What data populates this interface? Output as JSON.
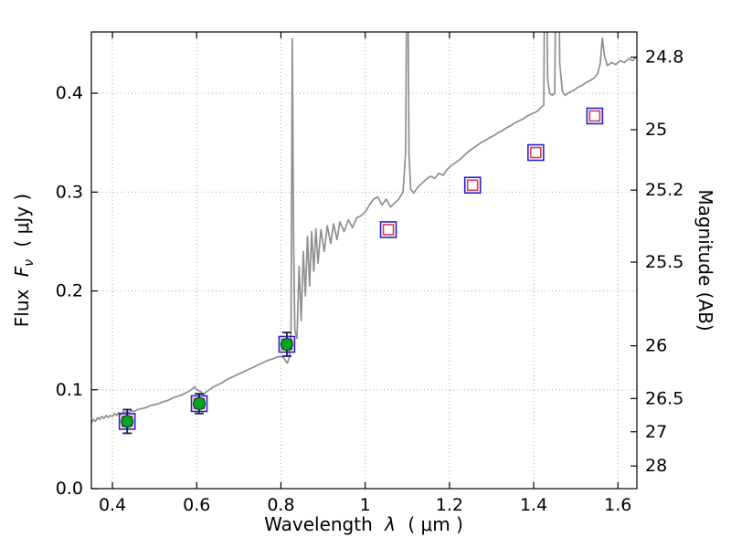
{
  "chart_data": {
    "type": "line+scatter",
    "title": "",
    "xlabel": {
      "word": "Wavelength",
      "symbol": "λ",
      "units": "( μm )"
    },
    "ylabel_left": {
      "word": "Flux",
      "symbol": "F",
      "symbol_sub": "ν",
      "units": "( μJy )"
    },
    "ylabel_right": "Magnitude (AB)",
    "xlim": [
      0.35,
      1.645
    ],
    "ylim": [
      0.0,
      0.462
    ],
    "grid": true,
    "style": {
      "grid_color": "#aaaaaa",
      "frame_color": "#000000",
      "background": "#ffffff"
    },
    "x_ticks": [
      {
        "value": 0.4,
        "label": "0.4"
      },
      {
        "value": 0.6,
        "label": "0.6"
      },
      {
        "value": 0.8,
        "label": "0.8"
      },
      {
        "value": 1.0,
        "label": "1"
      },
      {
        "value": 1.2,
        "label": "1.2"
      },
      {
        "value": 1.4,
        "label": "1.4"
      },
      {
        "value": 1.6,
        "label": "1.6"
      }
    ],
    "y_ticks_left": [
      {
        "value": 0.0,
        "label": "0.0"
      },
      {
        "value": 0.1,
        "label": "0.1"
      },
      {
        "value": 0.2,
        "label": "0.2"
      },
      {
        "value": 0.3,
        "label": "0.3"
      },
      {
        "value": 0.4,
        "label": "0.4"
      }
    ],
    "y_ticks_right": [
      {
        "mag": 24.8,
        "flux": 0.4365,
        "label": "24.8"
      },
      {
        "mag": 25.0,
        "flux": 0.3631,
        "label": "25"
      },
      {
        "mag": 25.2,
        "flux": 0.302,
        "label": "25.2"
      },
      {
        "mag": 25.5,
        "flux": 0.2291,
        "label": "25.5"
      },
      {
        "mag": 26.0,
        "flux": 0.1445,
        "label": "26"
      },
      {
        "mag": 26.5,
        "flux": 0.0912,
        "label": "26.5"
      },
      {
        "mag": 27.0,
        "flux": 0.0575,
        "label": "27"
      },
      {
        "mag": 28.0,
        "flux": 0.0229,
        "label": "28"
      }
    ],
    "observed_photometry": {
      "marker": "circle",
      "fill": "#00a527",
      "edge": "#063906",
      "errorbar_color": "#1c1c5e",
      "points": [
        {
          "x": 0.435,
          "y": 0.068,
          "yerr": 0.012
        },
        {
          "x": 0.606,
          "y": 0.086,
          "yerr": 0.01
        },
        {
          "x": 0.814,
          "y": 0.146,
          "yerr": 0.012
        }
      ]
    },
    "model_photometry": {
      "marker": "square",
      "outer_color": "#2222cc",
      "inner_color": "#dc3a5a",
      "points": [
        {
          "x": 0.435,
          "y": 0.068
        },
        {
          "x": 0.606,
          "y": 0.086
        },
        {
          "x": 0.814,
          "y": 0.146
        },
        {
          "x": 1.055,
          "y": 0.262
        },
        {
          "x": 1.255,
          "y": 0.307
        },
        {
          "x": 1.405,
          "y": 0.34
        },
        {
          "x": 1.545,
          "y": 0.377
        }
      ]
    },
    "spectrum": {
      "name": "template-spectrum",
      "color": "#8f8f8f",
      "points": [
        [
          0.35,
          0.066
        ],
        [
          0.355,
          0.07
        ],
        [
          0.36,
          0.068
        ],
        [
          0.365,
          0.072
        ],
        [
          0.37,
          0.07
        ],
        [
          0.375,
          0.073
        ],
        [
          0.38,
          0.071
        ],
        [
          0.385,
          0.074
        ],
        [
          0.39,
          0.072
        ],
        [
          0.395,
          0.074
        ],
        [
          0.4,
          0.073
        ],
        [
          0.405,
          0.076
        ],
        [
          0.41,
          0.074
        ],
        [
          0.415,
          0.077
        ],
        [
          0.42,
          0.075
        ],
        [
          0.425,
          0.078
        ],
        [
          0.43,
          0.077
        ],
        [
          0.435,
          0.078
        ],
        [
          0.44,
          0.077
        ],
        [
          0.445,
          0.079
        ],
        [
          0.45,
          0.078
        ],
        [
          0.46,
          0.08
        ],
        [
          0.47,
          0.081
        ],
        [
          0.48,
          0.082
        ],
        [
          0.49,
          0.084
        ],
        [
          0.5,
          0.085
        ],
        [
          0.51,
          0.086
        ],
        [
          0.52,
          0.088
        ],
        [
          0.53,
          0.089
        ],
        [
          0.54,
          0.091
        ],
        [
          0.55,
          0.093
        ],
        [
          0.56,
          0.094
        ],
        [
          0.57,
          0.096
        ],
        [
          0.58,
          0.098
        ],
        [
          0.59,
          0.101
        ],
        [
          0.595,
          0.103
        ],
        [
          0.6,
          0.1
        ],
        [
          0.61,
          0.098
        ],
        [
          0.615,
          0.095
        ],
        [
          0.62,
          0.097
        ],
        [
          0.63,
          0.1
        ],
        [
          0.64,
          0.103
        ],
        [
          0.65,
          0.105
        ],
        [
          0.66,
          0.107
        ],
        [
          0.67,
          0.11
        ],
        [
          0.68,
          0.112
        ],
        [
          0.69,
          0.114
        ],
        [
          0.7,
          0.116
        ],
        [
          0.71,
          0.118
        ],
        [
          0.72,
          0.12
        ],
        [
          0.73,
          0.122
        ],
        [
          0.74,
          0.124
        ],
        [
          0.75,
          0.126
        ],
        [
          0.76,
          0.128
        ],
        [
          0.77,
          0.13
        ],
        [
          0.78,
          0.131
        ],
        [
          0.79,
          0.133
        ],
        [
          0.8,
          0.134
        ],
        [
          0.805,
          0.133
        ],
        [
          0.81,
          0.13
        ],
        [
          0.815,
          0.127
        ],
        [
          0.82,
          0.133
        ],
        [
          0.824,
          0.16
        ],
        [
          0.827,
          0.455
        ],
        [
          0.83,
          0.25
        ],
        [
          0.833,
          0.16
        ],
        [
          0.838,
          0.152
        ],
        [
          0.843,
          0.225
        ],
        [
          0.848,
          0.17
        ],
        [
          0.853,
          0.24
        ],
        [
          0.858,
          0.195
        ],
        [
          0.863,
          0.255
        ],
        [
          0.868,
          0.205
        ],
        [
          0.873,
          0.26
        ],
        [
          0.878,
          0.22
        ],
        [
          0.883,
          0.263
        ],
        [
          0.888,
          0.228
        ],
        [
          0.895,
          0.262
        ],
        [
          0.903,
          0.24
        ],
        [
          0.91,
          0.266
        ],
        [
          0.918,
          0.248
        ],
        [
          0.925,
          0.268
        ],
        [
          0.933,
          0.252
        ],
        [
          0.94,
          0.27
        ],
        [
          0.95,
          0.26
        ],
        [
          0.96,
          0.272
        ],
        [
          0.97,
          0.264
        ],
        [
          0.98,
          0.274
        ],
        [
          0.99,
          0.276
        ],
        [
          1.0,
          0.28
        ],
        [
          1.01,
          0.287
        ],
        [
          1.02,
          0.293
        ],
        [
          1.03,
          0.295
        ],
        [
          1.04,
          0.287
        ],
        [
          1.05,
          0.293
        ],
        [
          1.06,
          0.285
        ],
        [
          1.07,
          0.289
        ],
        [
          1.08,
          0.293
        ],
        [
          1.09,
          0.3
        ],
        [
          1.096,
          0.34
        ],
        [
          1.1,
          0.6
        ],
        [
          1.104,
          0.34
        ],
        [
          1.108,
          0.303
        ],
        [
          1.115,
          0.299
        ],
        [
          1.125,
          0.305
        ],
        [
          1.135,
          0.309
        ],
        [
          1.145,
          0.313
        ],
        [
          1.155,
          0.316
        ],
        [
          1.165,
          0.314
        ],
        [
          1.175,
          0.319
        ],
        [
          1.185,
          0.317
        ],
        [
          1.195,
          0.323
        ],
        [
          1.205,
          0.327
        ],
        [
          1.215,
          0.33
        ],
        [
          1.225,
          0.333
        ],
        [
          1.235,
          0.337
        ],
        [
          1.245,
          0.341
        ],
        [
          1.255,
          0.344
        ],
        [
          1.265,
          0.347
        ],
        [
          1.275,
          0.35
        ],
        [
          1.285,
          0.352
        ],
        [
          1.295,
          0.355
        ],
        [
          1.305,
          0.357
        ],
        [
          1.315,
          0.36
        ],
        [
          1.325,
          0.362
        ],
        [
          1.335,
          0.365
        ],
        [
          1.345,
          0.367
        ],
        [
          1.355,
          0.37
        ],
        [
          1.365,
          0.372
        ],
        [
          1.375,
          0.374
        ],
        [
          1.385,
          0.377
        ],
        [
          1.395,
          0.379
        ],
        [
          1.405,
          0.381
        ],
        [
          1.412,
          0.383
        ],
        [
          1.418,
          0.386
        ],
        [
          1.424,
          0.388
        ],
        [
          1.428,
          0.66
        ],
        [
          1.433,
          0.415
        ],
        [
          1.438,
          0.4
        ],
        [
          1.444,
          0.398
        ],
        [
          1.45,
          0.4
        ],
        [
          1.456,
          0.67
        ],
        [
          1.462,
          0.43
        ],
        [
          1.468,
          0.402
        ],
        [
          1.475,
          0.398
        ],
        [
          1.485,
          0.401
        ],
        [
          1.495,
          0.403
        ],
        [
          1.505,
          0.406
        ],
        [
          1.515,
          0.408
        ],
        [
          1.525,
          0.411
        ],
        [
          1.535,
          0.413
        ],
        [
          1.545,
          0.416
        ],
        [
          1.552,
          0.42
        ],
        [
          1.558,
          0.43
        ],
        [
          1.563,
          0.456
        ],
        [
          1.568,
          0.438
        ],
        [
          1.575,
          0.428
        ],
        [
          1.585,
          0.431
        ],
        [
          1.595,
          0.429
        ],
        [
          1.605,
          0.433
        ],
        [
          1.615,
          0.431
        ],
        [
          1.625,
          0.435
        ],
        [
          1.635,
          0.433
        ],
        [
          1.645,
          0.437
        ]
      ]
    }
  }
}
